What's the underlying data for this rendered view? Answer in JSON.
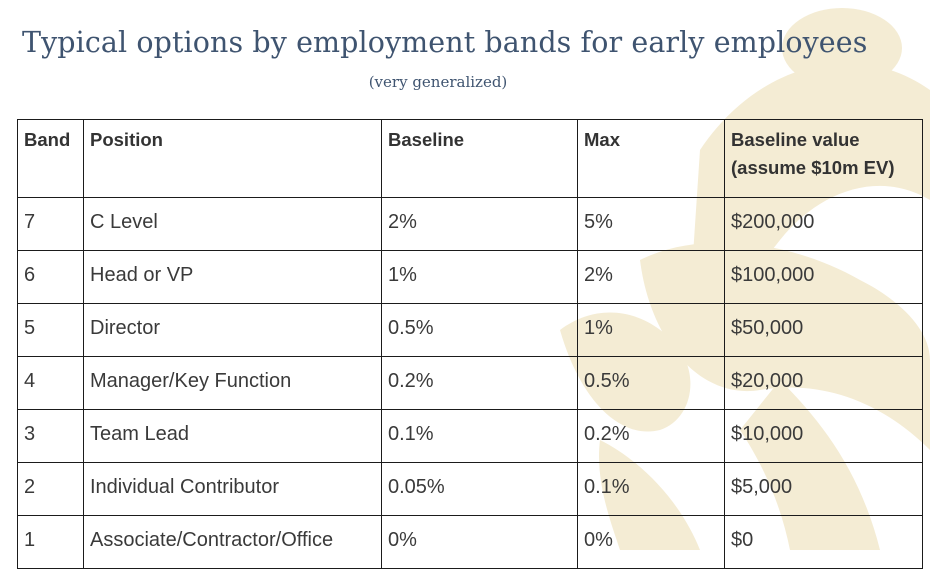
{
  "title": "Typical options by employment bands for early employees",
  "subtitle": "(very generalized)",
  "table": {
    "headers": {
      "band": "Band",
      "position": "Position",
      "baseline": "Baseline",
      "max": "Max",
      "value_line1": "Baseline value",
      "value_line2": "(assume $10m EV)"
    },
    "rows": [
      {
        "band": "7",
        "position": "C Level",
        "baseline": "2%",
        "max": "5%",
        "value": "$200,000"
      },
      {
        "band": "6",
        "position": "Head or VP",
        "baseline": "1%",
        "max": "2%",
        "value": "$100,000"
      },
      {
        "band": "5",
        "position": "Director",
        "baseline": "0.5%",
        "max": "1%",
        "value": "$50,000"
      },
      {
        "band": "4",
        "position": "Manager/Key Function",
        "baseline": "0.2%",
        "max": "0.5%",
        "value": "$20,000"
      },
      {
        "band": "3",
        "position": "Team Lead",
        "baseline": "0.1%",
        "max": "0.2%",
        "value": "$10,000"
      },
      {
        "band": "2",
        "position": "Individual Contributor",
        "baseline": "0.05%",
        "max": "0.1%",
        "value": "$5,000"
      },
      {
        "band": "1",
        "position": "Associate/Contractor/Office",
        "baseline": "0%",
        "max": "0%",
        "value": "$0"
      }
    ]
  },
  "colors": {
    "title": "#3f5470",
    "watermark": "#f4ecd4",
    "border": "#1b1b1b",
    "text": "#3a3a3a"
  },
  "icons": {
    "watermark": "runner-figure-watermark"
  }
}
